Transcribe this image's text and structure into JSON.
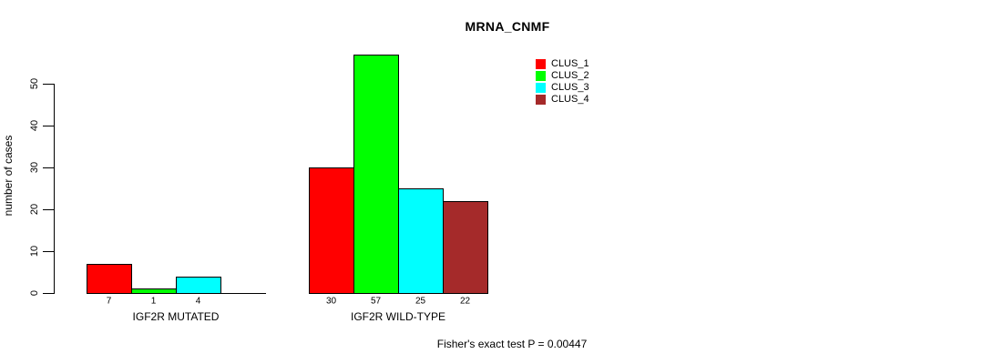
{
  "chart_data": {
    "type": "bar",
    "title": "MRNA_CNMF",
    "ylabel": "number of cases",
    "xlabel": "",
    "categories": [
      "IGF2R MUTATED",
      "IGF2R WILD-TYPE"
    ],
    "series": [
      {
        "name": "CLUS_1",
        "color": "#ff0000",
        "values": [
          7,
          30
        ]
      },
      {
        "name": "CLUS_2",
        "color": "#00ff00",
        "values": [
          1,
          57
        ]
      },
      {
        "name": "CLUS_3",
        "color": "#00ffff",
        "values": [
          4,
          25
        ]
      },
      {
        "name": "CLUS_4",
        "color": "#a52a2a",
        "values": [
          0,
          22
        ]
      }
    ],
    "yticks": [
      0,
      10,
      20,
      30,
      40,
      50
    ],
    "ylim": [
      0,
      57
    ],
    "grid": false,
    "legend_position": "top-right",
    "bar_value_labels_shown": true,
    "annotation": "Fisher's exact test P = 0.00447"
  }
}
